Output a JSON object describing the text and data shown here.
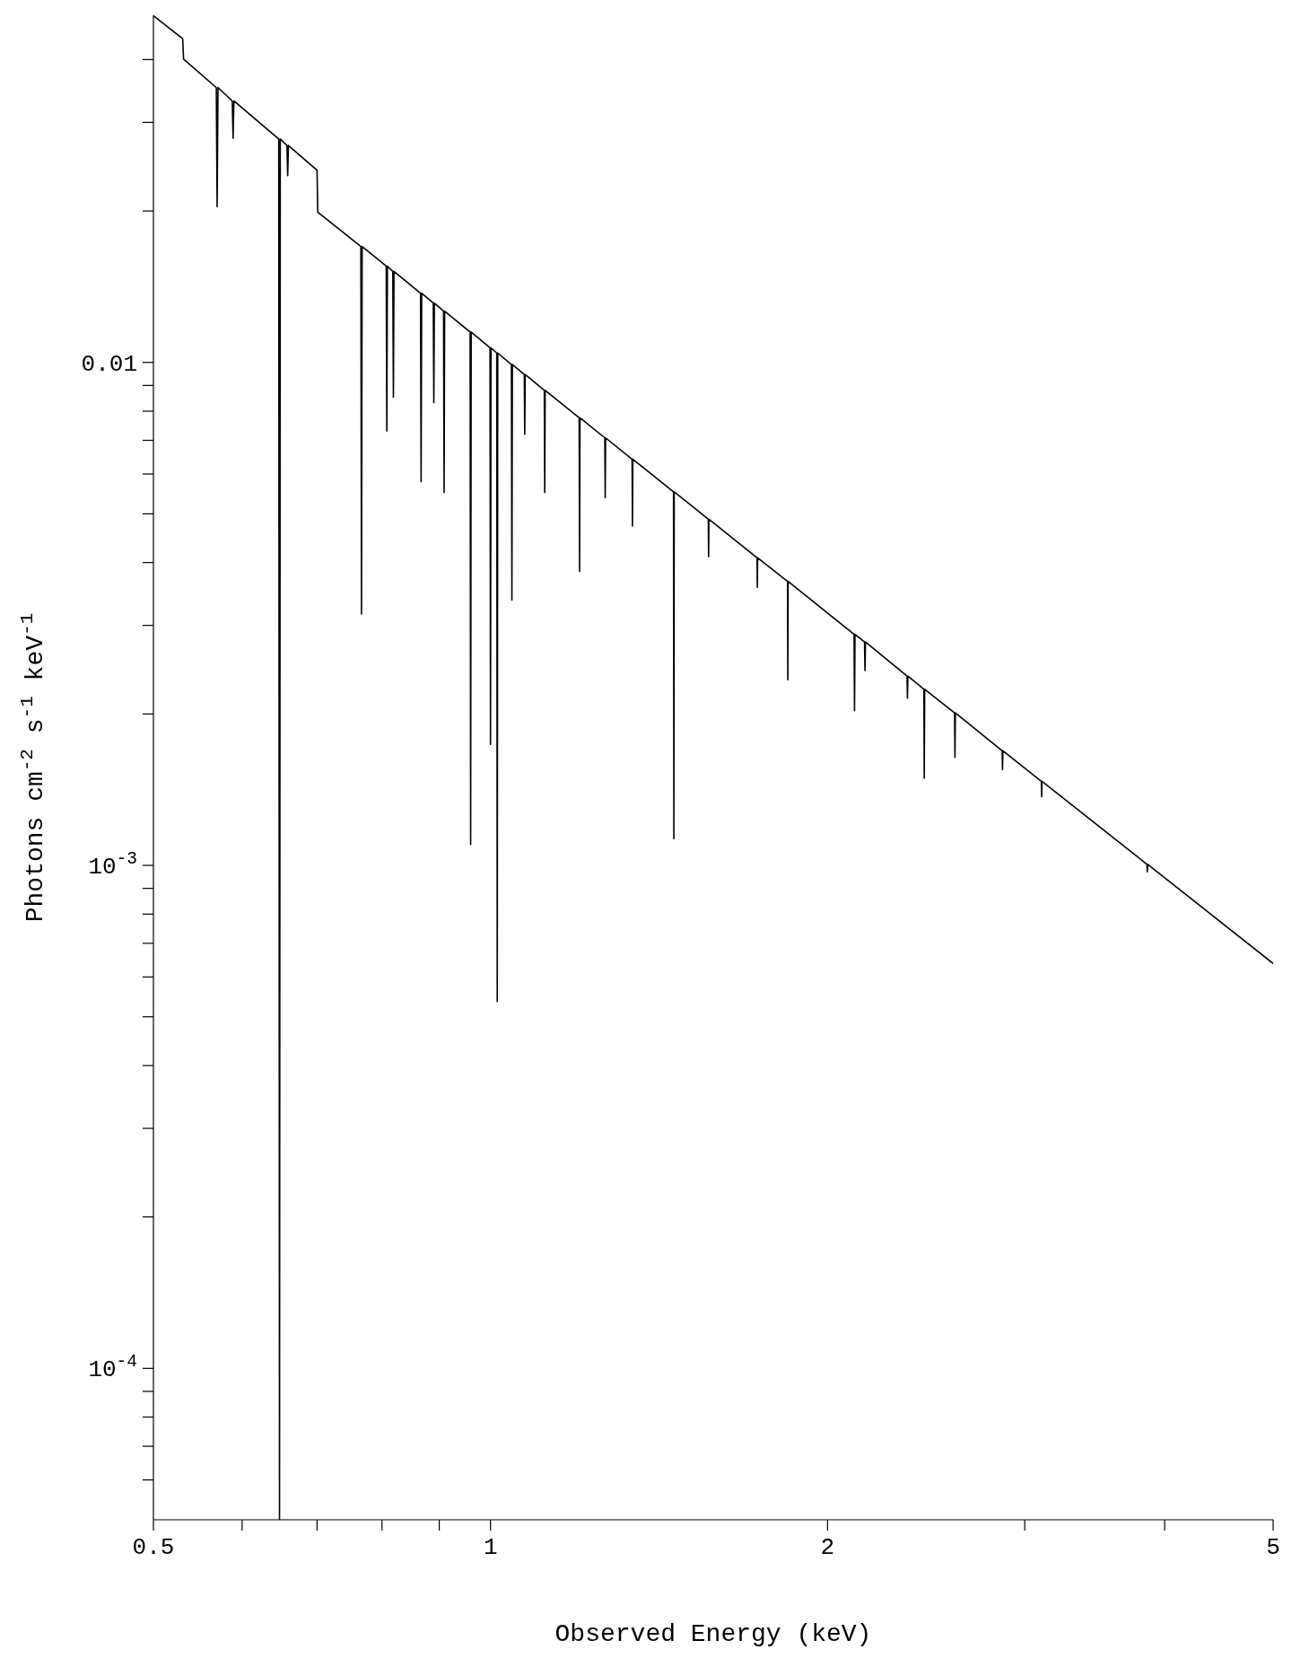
{
  "chart_data": {
    "type": "line",
    "xlabel": "Observed Energy (keV)",
    "ylabel": "Photons cm$^{-2}$ s$^{-1}$ keV$^{-1}$",
    "log": "xy",
    "color": "#000000",
    "xlim": [
      0.5,
      5
    ],
    "ylim": [
      5e-05,
      0.049
    ],
    "xticks": [
      0.5,
      {
        "value": 0.6,
        "label": null
      },
      {
        "value": 0.7,
        "label": null
      },
      {
        "value": 0.8,
        "label": null
      },
      {
        "value": 0.9,
        "label": null
      },
      1,
      2,
      {
        "value": 3,
        "label": null
      },
      {
        "value": 4,
        "label": null
      },
      5
    ],
    "yticks": [
      {
        "value": 6e-05,
        "label": null
      },
      {
        "value": 7e-05,
        "label": null
      },
      {
        "value": 8e-05,
        "label": null
      },
      {
        "value": 9e-05,
        "label": null
      },
      {
        "value": 0.0001,
        "label": "10$^{-4}$"
      },
      {
        "value": 0.0002,
        "label": null
      },
      {
        "value": 0.0003,
        "label": null
      },
      {
        "value": 0.0004,
        "label": null
      },
      {
        "value": 0.0005,
        "label": null
      },
      {
        "value": 0.0006,
        "label": null
      },
      {
        "value": 0.0007,
        "label": null
      },
      {
        "value": 0.0008,
        "label": null
      },
      {
        "value": 0.0009,
        "label": null
      },
      {
        "value": 0.001,
        "label": "10$^{-3}$"
      },
      {
        "value": 0.002,
        "label": null
      },
      {
        "value": 0.003,
        "label": null
      },
      {
        "value": 0.004,
        "label": null
      },
      {
        "value": 0.005,
        "label": null
      },
      {
        "value": 0.006,
        "label": null
      },
      {
        "value": 0.007,
        "label": null
      },
      {
        "value": 0.008,
        "label": null
      },
      {
        "value": 0.009,
        "label": null
      },
      0.01,
      {
        "value": 0.02,
        "label": null
      },
      {
        "value": 0.03,
        "label": null
      },
      {
        "value": 0.04,
        "label": null
      }
    ],
    "x": [
      0.5,
      0.531,
      0.532,
      0.569,
      0.57,
      0.571,
      0.588,
      0.589,
      0.59,
      0.647,
      0.648,
      0.649,
      0.658,
      0.659,
      0.66,
      0.7,
      0.701,
      0.766,
      0.767,
      0.768,
      0.807,
      0.808,
      0.809,
      0.818,
      0.819,
      0.82,
      0.866,
      0.867,
      0.868,
      0.889,
      0.89,
      0.891,
      0.908,
      0.909,
      0.91,
      0.959,
      0.96,
      0.961,
      0.999,
      1.0,
      1.001,
      1.013,
      1.014,
      1.015,
      1.044,
      1.045,
      1.046,
      1.072,
      1.073,
      1.074,
      1.117,
      1.118,
      1.119,
      1.2,
      1.201,
      1.202,
      1.265,
      1.266,
      1.267,
      1.338,
      1.339,
      1.34,
      1.457,
      1.458,
      1.459,
      1.565,
      1.566,
      1.567,
      1.73,
      1.731,
      1.732,
      1.842,
      1.843,
      1.844,
      2.112,
      2.114,
      2.116,
      2.158,
      2.16,
      2.162,
      2.355,
      2.357,
      2.359,
      2.438,
      2.44,
      2.442,
      2.597,
      2.599,
      2.601,
      2.864,
      2.866,
      2.868,
      3.104,
      3.106,
      3.108,
      3.857,
      3.86,
      3.863,
      5
    ],
    "values": [
      0.0489,
      0.044,
      0.0401,
      0.0352,
      0.0204,
      0.0352,
      0.0331,
      0.0279,
      0.0331,
      0.0278,
      5e-05,
      0.0278,
      0.027,
      0.0235,
      0.027,
      0.0241,
      0.0199,
      0.017,
      0.00316,
      0.017,
      0.01554,
      0.0073,
      0.01554,
      0.01517,
      0.00853,
      0.01517,
      0.01373,
      0.00579,
      0.01373,
      0.01312,
      0.00832,
      0.01312,
      0.01264,
      0.00551,
      0.01264,
      0.01149,
      0.0011,
      0.01149,
      0.01069,
      0.00174,
      0.01069,
      0.01044,
      0.000536,
      0.01044,
      0.0099,
      0.00337,
      0.0099,
      0.00946,
      0.0072,
      0.00946,
      0.0088,
      0.00551,
      0.0088,
      0.00776,
      0.00384,
      0.00776,
      0.00708,
      0.00538,
      0.00708,
      0.00642,
      0.00473,
      0.00642,
      0.00553,
      0.00113,
      0.00553,
      0.00488,
      0.00411,
      0.00488,
      0.00409,
      0.00357,
      0.00409,
      0.00367,
      0.00234,
      0.00367,
      0.00288,
      0.00203,
      0.00288,
      0.00278,
      0.00244,
      0.00278,
      0.00238,
      0.00215,
      0.00238,
      0.00224,
      0.00149,
      0.00224,
      0.00201,
      0.00164,
      0.00201,
      0.00169,
      0.00155,
      0.00169,
      0.00147,
      0.00137,
      0.00147,
      0.001005,
      0.000971,
      0.001005,
      0.000638
    ]
  }
}
